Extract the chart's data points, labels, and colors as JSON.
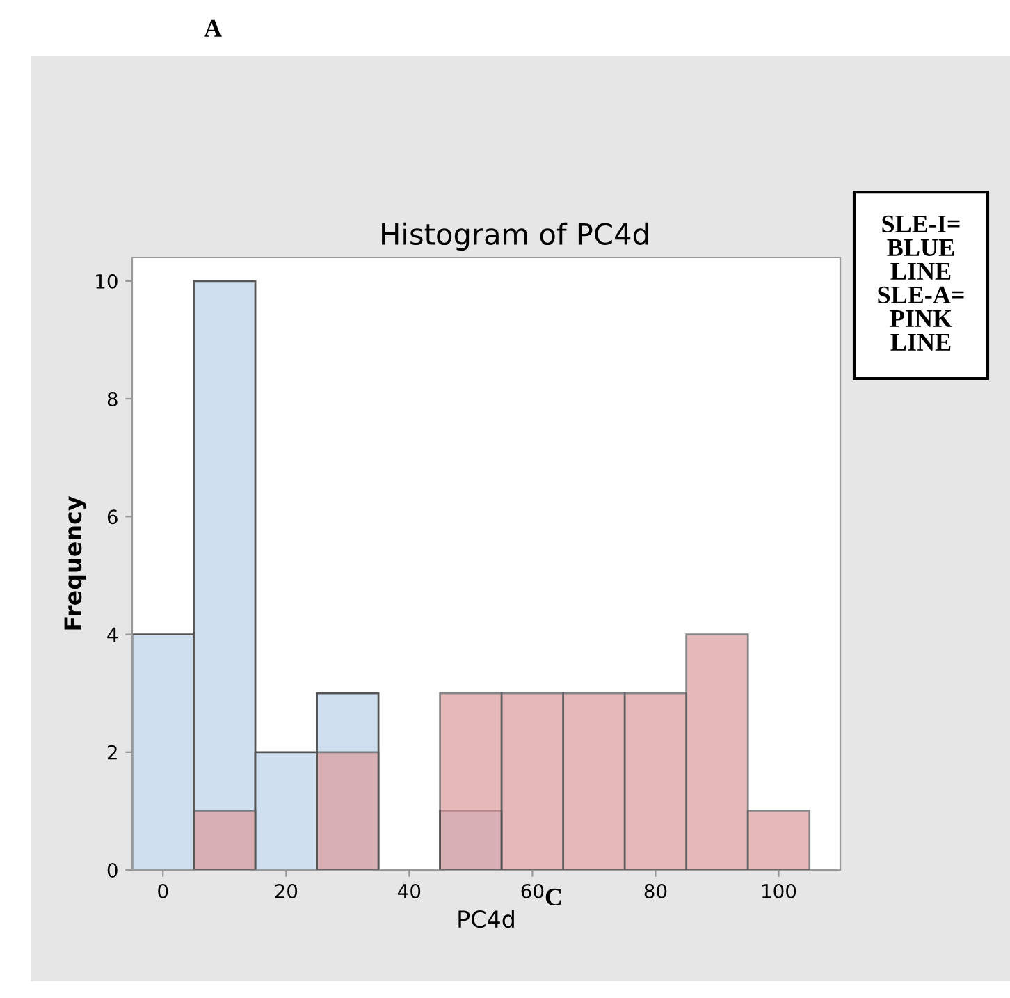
{
  "chart_data": {
    "type": "histogram",
    "title": "Histogram of PC4d",
    "xlabel": "PC4d",
    "ylabel": "Frequency",
    "bins": [
      -5,
      5,
      15,
      25,
      35,
      45,
      55,
      65,
      75,
      85,
      95,
      105
    ],
    "series": [
      {
        "color": "#cfdfef",
        "values": [
          4,
          10,
          2,
          3,
          0,
          1,
          0,
          0,
          0,
          0,
          0
        ]
      },
      {
        "color": "#e8b9bb",
        "values": [
          0,
          1,
          0,
          2,
          0,
          3,
          3,
          3,
          3,
          4,
          1
        ]
      }
    ],
    "xlim": [
      -5,
      110
    ],
    "ylim": [
      0,
      10.4
    ],
    "xticks": [
      0,
      20,
      40,
      60,
      80,
      100
    ],
    "yticks": [
      0,
      2,
      4,
      6,
      8,
      10
    ],
    "grid": false,
    "legend": false,
    "annotations": [
      "A",
      "C",
      "SLE-I=\nBLUE\nLINE\nSLE-A=\nPINK\nLINE"
    ]
  }
}
